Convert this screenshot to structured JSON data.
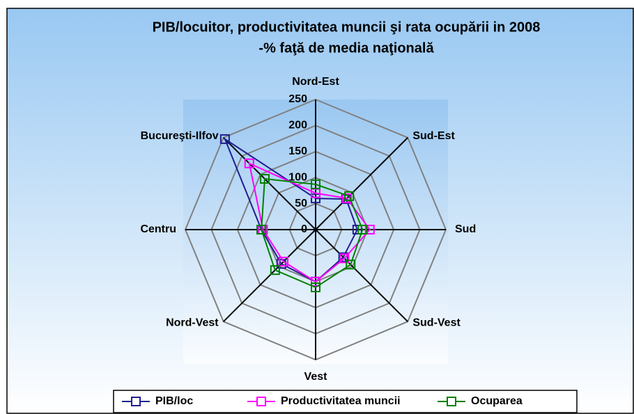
{
  "chart_data": {
    "type": "radar",
    "title": "PIB/locuitor, productivitatea muncii şi rata ocupării in 2008",
    "subtitle": "-% faţă de media naţională",
    "categories": [
      "Nord-Est",
      "Sud-Est",
      "Sud",
      "Sud-Vest",
      "Vest",
      "Nord-Vest",
      "Centru",
      "Bucureşti-Ilfov"
    ],
    "series": [
      {
        "name": "PIB/loc",
        "color": "#1f1f8f",
        "values": [
          60,
          83,
          80,
          75,
          100,
          93,
          104,
          246
        ]
      },
      {
        "name": "Productivitatea muncii",
        "color": "#ff00ff",
        "values": [
          70,
          85,
          104,
          78,
          100,
          87,
          101,
          180
        ]
      },
      {
        "name": "Ocuparea",
        "color": "#008000",
        "values": [
          87,
          91,
          90,
          95,
          111,
          110,
          104,
          138
        ]
      }
    ],
    "rlim": [
      0,
      250
    ],
    "rticks": [
      0,
      50,
      100,
      150,
      200,
      250
    ],
    "grid": true,
    "legend": "bottom"
  }
}
